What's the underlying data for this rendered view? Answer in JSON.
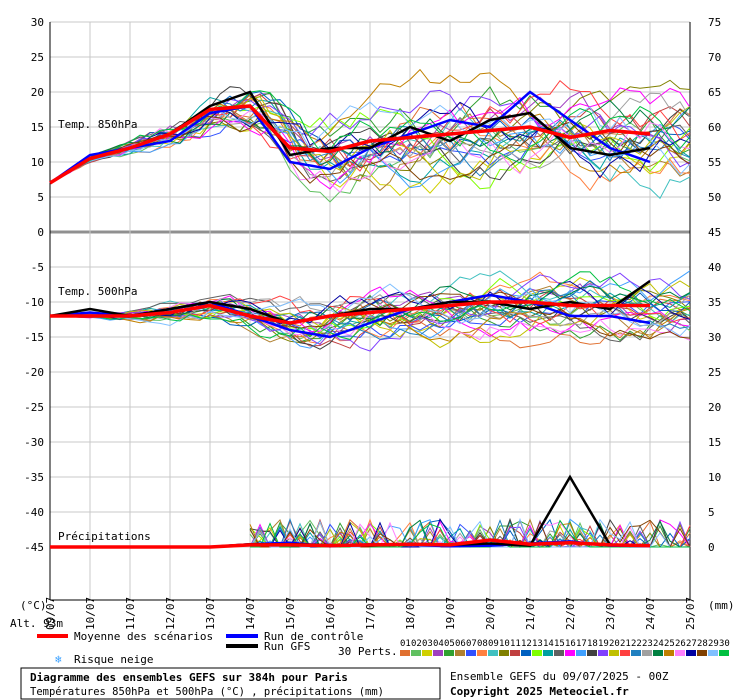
{
  "chart_data": {
    "type": "line",
    "x_dates": [
      "10/07",
      "11/07",
      "12/07",
      "13/07",
      "14/07",
      "15/07",
      "16/07",
      "17/07",
      "18/07",
      "19/07",
      "20/07",
      "21/07",
      "22/07",
      "23/07",
      "24/07",
      "25/07"
    ],
    "first_x_label": "09/07",
    "y_left_ticks": [
      30,
      25,
      20,
      15,
      10,
      5,
      0,
      -5,
      -10,
      -15,
      -20,
      -25,
      -30,
      -35,
      -40,
      -45
    ],
    "y_right_ticks": [
      75,
      70,
      65,
      60,
      55,
      50,
      45,
      40,
      35,
      30,
      25,
      20,
      15,
      10,
      5,
      0
    ],
    "unit_left": "(°C)",
    "unit_right": "(mm)",
    "panel_labels": {
      "t850": "Temp. 850hPa",
      "t500": "Temp. 500hPa",
      "precip": "Précipitations"
    },
    "altitude": "Alt. 93m",
    "series": [
      {
        "name": "Moyenne des scénarios",
        "color": "#ff0000",
        "t850": [
          7,
          10.5,
          12,
          14,
          17.5,
          18,
          12,
          11.5,
          13,
          13.5,
          14,
          14.5,
          15,
          13.5,
          14.5,
          14
        ],
        "t500": [
          -12,
          -12,
          -12,
          -11.5,
          -10.5,
          -12,
          -13,
          -12,
          -11.5,
          -11,
          -10.5,
          -10,
          -10,
          -10.5,
          -10.5,
          -10.5
        ],
        "precip": [
          0,
          0,
          0,
          0,
          0,
          0.3,
          0.3,
          0.2,
          0.3,
          0.4,
          0.3,
          1,
          0.4,
          0.6,
          0.3,
          0.2
        ]
      },
      {
        "name": "Run de contrôle",
        "color": "#0000ff",
        "t850": [
          7,
          11,
          12,
          13,
          17,
          18,
          10,
          9,
          12,
          14,
          16,
          15,
          20,
          16,
          12,
          10
        ],
        "t500": [
          -12,
          -11.5,
          -12,
          -11,
          -10,
          -12,
          -14,
          -15,
          -13,
          -11,
          -10,
          -9,
          -10,
          -12,
          -12,
          -13
        ],
        "precip": [
          0,
          0,
          0,
          0,
          0,
          0.4,
          0.6,
          0.1,
          0.4,
          0.3,
          0.1,
          0.2,
          0.5,
          0.8,
          0.2,
          0.1
        ]
      },
      {
        "name": "Run GFS",
        "color": "#000000",
        "t850": [
          7,
          10.5,
          12,
          14,
          18,
          20,
          11,
          12,
          12,
          15,
          13,
          16,
          17,
          12,
          11,
          12
        ],
        "t500": [
          -12,
          -11,
          -12,
          -11,
          -10,
          -11,
          -13,
          -12,
          -11,
          -11,
          -10,
          -10,
          -11,
          -10,
          -11,
          -7
        ],
        "precip": [
          0,
          0,
          0,
          0,
          0,
          0.4,
          0.4,
          0.3,
          0.2,
          0.4,
          0.3,
          0.5,
          0.2,
          10,
          0.3,
          0.2
        ]
      }
    ],
    "ensemble_note": "30 Perts.",
    "perturbation_labels": [
      "01",
      "02",
      "03",
      "04",
      "05",
      "06",
      "07",
      "08",
      "09",
      "10",
      "11",
      "12",
      "13",
      "14",
      "15",
      "16",
      "17",
      "18",
      "19",
      "20",
      "21",
      "22",
      "23",
      "24",
      "25",
      "26",
      "27",
      "28",
      "29",
      "30"
    ],
    "perturbation_colors": [
      "#e07030",
      "#60c060",
      "#d0d000",
      "#a040c0",
      "#30a030",
      "#b08030",
      "#3050ff",
      "#ff8040",
      "#40c0c0",
      "#808000",
      "#c04040",
      "#0060c0",
      "#80ff00",
      "#00a0a0",
      "#606060",
      "#ff00ff",
      "#40a0ff",
      "#404040",
      "#8040ff",
      "#c0c000",
      "#ff4040",
      "#2080c0",
      "#a0a0a0",
      "#008040",
      "#c08000",
      "#ff80ff",
      "#0000a0",
      "#804000",
      "#80c0ff",
      "#00c040"
    ],
    "snow_risk_label": "Risque neige",
    "grid": true,
    "legend_position": "bottom"
  },
  "footer": {
    "title": "Diagramme des ensembles GEFS sur 384h pour Paris",
    "subtitle": "Températures 850hPa et 500hPa (°C) , précipitations (mm)",
    "run_info": "Ensemble GEFS du 09/07/2025 - 00Z",
    "copyright": "Copyright 2025 Meteociel.fr"
  },
  "colors": {
    "grid": "#c8c8c8",
    "separator": "#909090",
    "mean": "#ff0000",
    "control": "#0000ff",
    "gfs": "#000000"
  }
}
